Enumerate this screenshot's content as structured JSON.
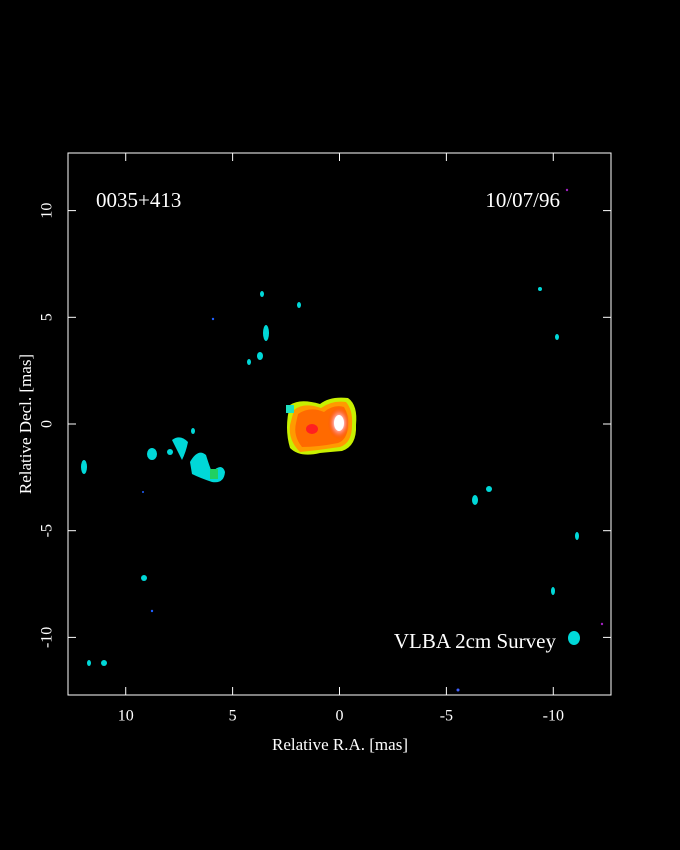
{
  "chart_data": {
    "type": "image",
    "annotations": [
      "0035+413",
      "10/07/96",
      "VLBA 2cm Survey"
    ],
    "xlabel": "Relative R.A. [mas]",
    "ylabel": "Relative Decl. [mas]",
    "xlim": [
      12.7,
      -12.7
    ],
    "xticks": [
      10,
      5,
      0,
      -5,
      -10
    ],
    "ylim": [
      -12.7,
      12.7
    ],
    "yticks": [
      10,
      5,
      0,
      -5,
      -10
    ]
  }
}
